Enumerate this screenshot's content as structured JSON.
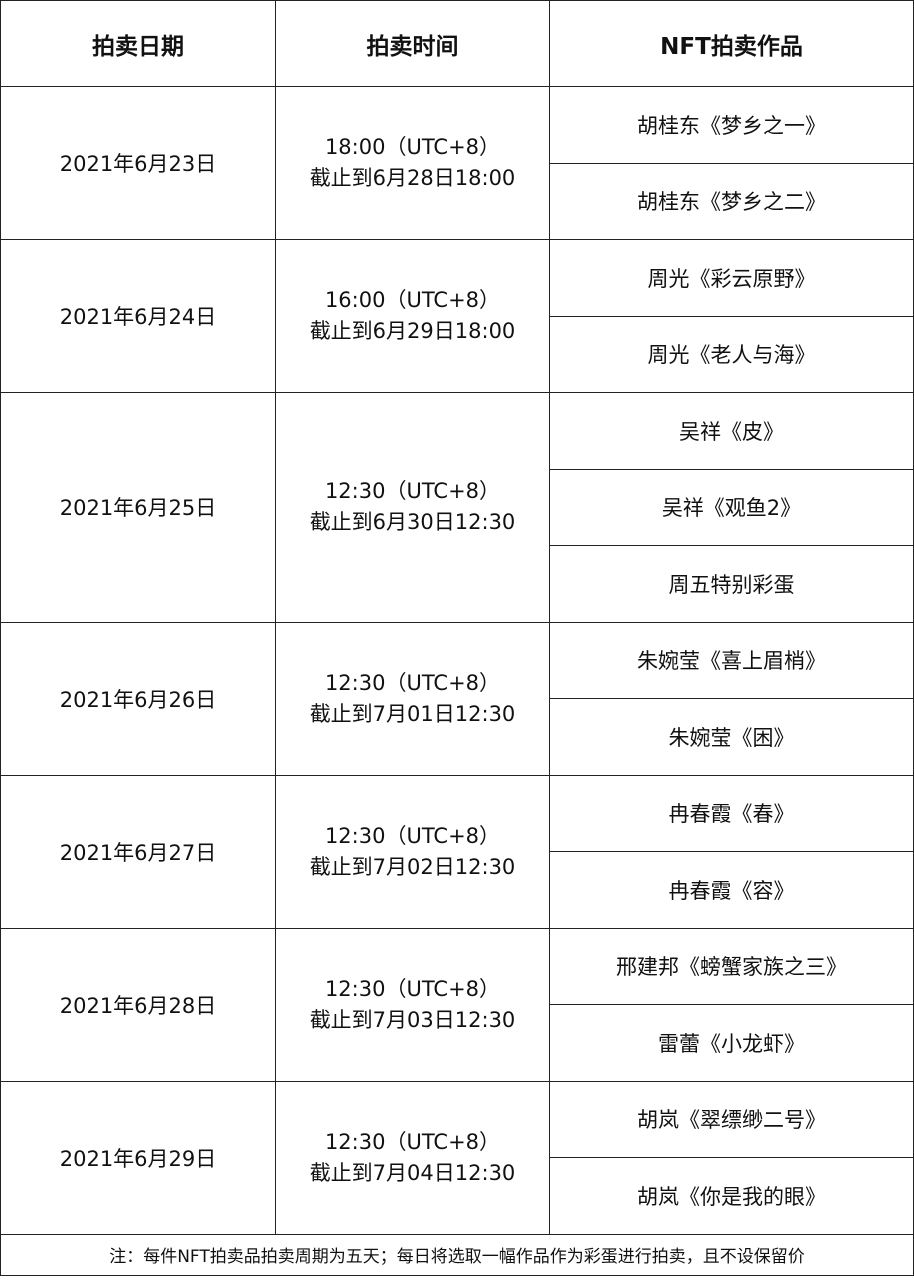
{
  "headers": [
    "拍卖日期",
    "拍卖时间",
    "NFT拍卖作品"
  ],
  "rows": [
    {
      "date": "2021年6月23日",
      "time": "18:00（UTC+8）",
      "deadline": "截止到6月28日18:00",
      "works": [
        "胡桂东《梦乡之一》",
        "胡桂东《梦乡之二》"
      ]
    },
    {
      "date": "2021年6月24日",
      "time": "16:00（UTC+8）",
      "deadline": "截止到6月29日18:00",
      "works": [
        "周光《彩云原野》",
        "周光《老人与海》"
      ]
    },
    {
      "date": "2021年6月25日",
      "time": "12:30（UTC+8）",
      "deadline": "截止到6月30日12:30",
      "works": [
        "吴祥《皮》",
        "吴祥《观鱼2》",
        "周五特别彩蛋"
      ]
    },
    {
      "date": "2021年6月26日",
      "time": "12:30（UTC+8）",
      "deadline": "截止到7月01日12:30",
      "works": [
        "朱婉莹《喜上眉梢》",
        "朱婉莹《困》"
      ]
    },
    {
      "date": "2021年6月27日",
      "time": "12:30（UTC+8）",
      "deadline": "截止到7月02日12:30",
      "works": [
        "冉春霞《春》",
        "冉春霞《容》"
      ]
    },
    {
      "date": "2021年6月28日",
      "time": "12:30（UTC+8）",
      "deadline": "截止到7月03日12:30",
      "works": [
        "邢建邦《螃蟹家族之三》",
        "雷蕾《小龙虾》"
      ]
    },
    {
      "date": "2021年6月29日",
      "time": "12:30（UTC+8）",
      "deadline": "截止到7月04日12:30",
      "works": [
        "胡岚《翠缥缈二号》",
        "胡岚《你是我的眼》"
      ]
    }
  ],
  "note": "注：每件NFT拍卖品拍卖周期为五天；每日将选取一幅作品作为彩蛋进行拍卖，且不设保留价"
}
